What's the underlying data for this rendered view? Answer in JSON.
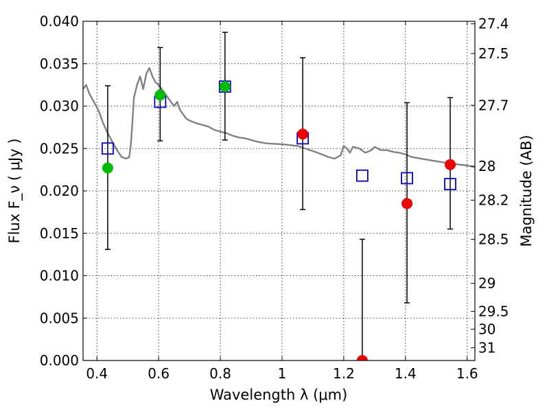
{
  "chart_data": {
    "type": "scatter",
    "title": "",
    "xlabel": "Wavelength  λ (μm)",
    "ylabel": "Flux  F_ν  ( μJy )",
    "y2label": "Magnitude (AB)",
    "xlim": [
      0.355,
      1.625
    ],
    "ylim": [
      0.0,
      0.04
    ],
    "grid": true,
    "x_ticks": [
      {
        "value": 0.4,
        "label": "0.4"
      },
      {
        "value": 0.6,
        "label": "0.6"
      },
      {
        "value": 0.8,
        "label": "0.8"
      },
      {
        "value": 1.0,
        "label": "1"
      },
      {
        "value": 1.2,
        "label": "1.2"
      },
      {
        "value": 1.4,
        "label": "1.4"
      },
      {
        "value": 1.6,
        "label": "1.6"
      }
    ],
    "y_ticks": [
      {
        "value": 0.0,
        "label": "0.000"
      },
      {
        "value": 0.005,
        "label": "0.005"
      },
      {
        "value": 0.01,
        "label": "0.010"
      },
      {
        "value": 0.015,
        "label": "0.015"
      },
      {
        "value": 0.02,
        "label": "0.020"
      },
      {
        "value": 0.025,
        "label": "0.025"
      },
      {
        "value": 0.03,
        "label": "0.030"
      },
      {
        "value": 0.035,
        "label": "0.035"
      },
      {
        "value": 0.04,
        "label": "0.040"
      }
    ],
    "y2_ticks": [
      {
        "flux": 0.0397,
        "label": "27.4"
      },
      {
        "flux": 0.0362,
        "label": "27.5"
      },
      {
        "flux": 0.0301,
        "label": "27.7"
      },
      {
        "flux": 0.0229,
        "label": "28"
      },
      {
        "flux": 0.0189,
        "label": "28.2"
      },
      {
        "flux": 0.0143,
        "label": "28.5"
      },
      {
        "flux": 0.0091,
        "label": "29"
      },
      {
        "flux": 0.0058,
        "label": "29.5"
      },
      {
        "flux": 0.0037,
        "label": "30"
      },
      {
        "flux": 0.0015,
        "label": "31"
      }
    ],
    "series": [
      {
        "kind": "line",
        "color": "#808080",
        "x": [
          0.355,
          0.365,
          0.375,
          0.39,
          0.405,
          0.42,
          0.435,
          0.45,
          0.465,
          0.48,
          0.495,
          0.505,
          0.51,
          0.515,
          0.52,
          0.53,
          0.54,
          0.55,
          0.56,
          0.57,
          0.58,
          0.59,
          0.6,
          0.61,
          0.62,
          0.63,
          0.64,
          0.65,
          0.66,
          0.67,
          0.68,
          0.69,
          0.7,
          0.72,
          0.74,
          0.76,
          0.78,
          0.8,
          0.82,
          0.84,
          0.86,
          0.88,
          0.9,
          0.92,
          0.95,
          1.0,
          1.05,
          1.1,
          1.13,
          1.15,
          1.17,
          1.19,
          1.2,
          1.21,
          1.22,
          1.23,
          1.25,
          1.27,
          1.29,
          1.3,
          1.32,
          1.34,
          1.36,
          1.38,
          1.4,
          1.42,
          1.45,
          1.5,
          1.55,
          1.6,
          1.625
        ],
        "y": [
          0.032,
          0.0325,
          0.0315,
          0.0305,
          0.0295,
          0.028,
          0.0268,
          0.0258,
          0.0248,
          0.024,
          0.0238,
          0.024,
          0.0255,
          0.028,
          0.031,
          0.0325,
          0.0335,
          0.032,
          0.0338,
          0.0345,
          0.0335,
          0.0328,
          0.0325,
          0.032,
          0.0315,
          0.031,
          0.0305,
          0.03,
          0.0305,
          0.0295,
          0.029,
          0.0285,
          0.0283,
          0.028,
          0.0278,
          0.0276,
          0.0272,
          0.027,
          0.0268,
          0.0265,
          0.0263,
          0.0262,
          0.026,
          0.0258,
          0.0256,
          0.0255,
          0.0253,
          0.0247,
          0.0243,
          0.024,
          0.0238,
          0.0242,
          0.0253,
          0.025,
          0.0245,
          0.0252,
          0.025,
          0.0245,
          0.0248,
          0.0252,
          0.0248,
          0.0248,
          0.0246,
          0.0245,
          0.0243,
          0.024,
          0.0238,
          0.0235,
          0.0232,
          0.023,
          0.0228
        ]
      },
      {
        "kind": "error_bars",
        "color": "#000000",
        "points": [
          {
            "x": 0.435,
            "lo": 0.0131,
            "hi": 0.0324
          },
          {
            "x": 0.605,
            "lo": 0.0259,
            "hi": 0.0369
          },
          {
            "x": 0.815,
            "lo": 0.026,
            "hi": 0.0387
          },
          {
            "x": 1.067,
            "lo": 0.0178,
            "hi": 0.0357
          },
          {
            "x": 1.26,
            "lo": 0.0,
            "hi": 0.0143
          },
          {
            "x": 1.405,
            "lo": 0.0068,
            "hi": 0.0304
          },
          {
            "x": 1.545,
            "lo": 0.0155,
            "hi": 0.031
          }
        ]
      },
      {
        "kind": "open_squares",
        "color": "#0000cc",
        "x": [
          0.435,
          0.605,
          0.815,
          1.067,
          1.26,
          1.405,
          1.545
        ],
        "y": [
          0.025,
          0.0305,
          0.0323,
          0.0262,
          0.0218,
          0.0215,
          0.0208
        ]
      },
      {
        "kind": "circles",
        "color": "#00bb00",
        "x": [
          0.435,
          0.605,
          0.815
        ],
        "y": [
          0.0227,
          0.0313,
          0.0323
        ]
      },
      {
        "kind": "circles",
        "color": "#ee0000",
        "x": [
          1.067,
          1.26,
          1.405,
          1.545
        ],
        "y": [
          0.0267,
          0.0,
          0.0185,
          0.0231
        ]
      }
    ]
  }
}
